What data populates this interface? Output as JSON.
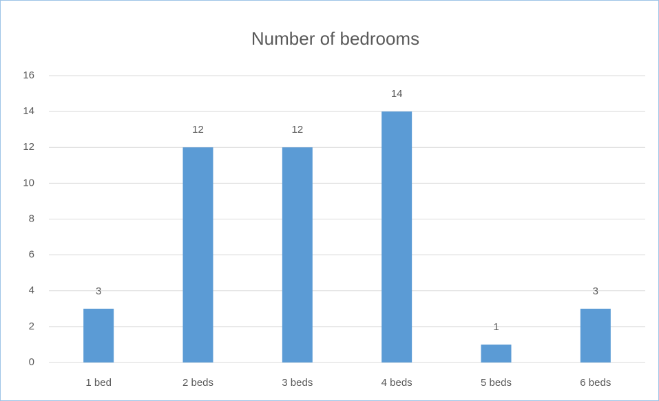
{
  "chart_data": {
    "type": "bar",
    "title": "Number of bedrooms",
    "categories": [
      "1 bed",
      "2 beds",
      "3 beds",
      "4 beds",
      "5 beds",
      "6 beds"
    ],
    "values": [
      3,
      12,
      12,
      14,
      1,
      3
    ],
    "color": "#5b9bd5",
    "ylim": [
      0,
      16
    ],
    "yticks": [
      0,
      2,
      4,
      6,
      8,
      10,
      12,
      14,
      16
    ],
    "grid": true,
    "data_labels": true
  }
}
